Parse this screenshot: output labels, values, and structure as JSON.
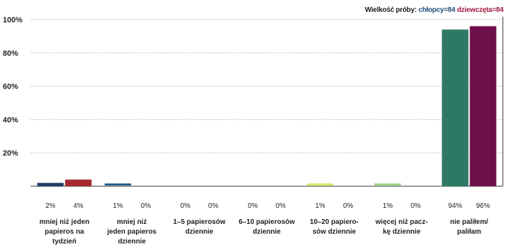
{
  "sample_size": {
    "label": "Wielkość próby:",
    "boys": "chłopcy=84",
    "girls": "dziewczęta=84"
  },
  "colors": {
    "boys_default": "#1f4e79",
    "girls_default": "#a0183c",
    "grid": "#9a9a9a",
    "axis": "#333333"
  },
  "chart_data": {
    "type": "bar",
    "ylim": [
      0,
      100
    ],
    "yticks": [
      "20%",
      "40%",
      "60%",
      "80%",
      "100%"
    ],
    "grid": "horizontal dotted",
    "categories": [
      {
        "lines": [
          "mniej niż jeden",
          "papieros na",
          "tydzień"
        ]
      },
      {
        "lines": [
          "mniej niż",
          "jeden papieros",
          "dziennie"
        ]
      },
      {
        "lines": [
          "1–5 papierosów",
          "dziennie"
        ]
      },
      {
        "lines": [
          "6–10 papierosów",
          "dziennie"
        ]
      },
      {
        "lines": [
          "10–20 papiero-",
          "sów dziennie"
        ]
      },
      {
        "lines": [
          "więcej niż pacz-",
          "kę dziennie"
        ]
      },
      {
        "lines": [
          "nie paliłem/",
          "paliłam"
        ]
      }
    ],
    "series": [
      {
        "values": [
          2,
          1,
          0,
          0,
          1,
          1,
          94
        ],
        "labels": [
          "2%",
          "1%",
          "0%",
          "0%",
          "1%",
          "1%",
          "94%"
        ],
        "colors": [
          "#1f3f66",
          "#2b5f8e",
          "#1f3f66",
          "#1f3f66",
          "#d8e86a",
          "#9ed68a",
          "#2e7866"
        ]
      },
      {
        "values": [
          4,
          0,
          0,
          0,
          0,
          0,
          96
        ],
        "labels": [
          "4%",
          "0%",
          "0%",
          "0%",
          "0%",
          "0%",
          "96%"
        ],
        "colors": [
          "#a52a30",
          "#a52a30",
          "#a52a30",
          "#a52a30",
          "#a52a30",
          "#a52a30",
          "#6e0f4a"
        ]
      }
    ]
  }
}
